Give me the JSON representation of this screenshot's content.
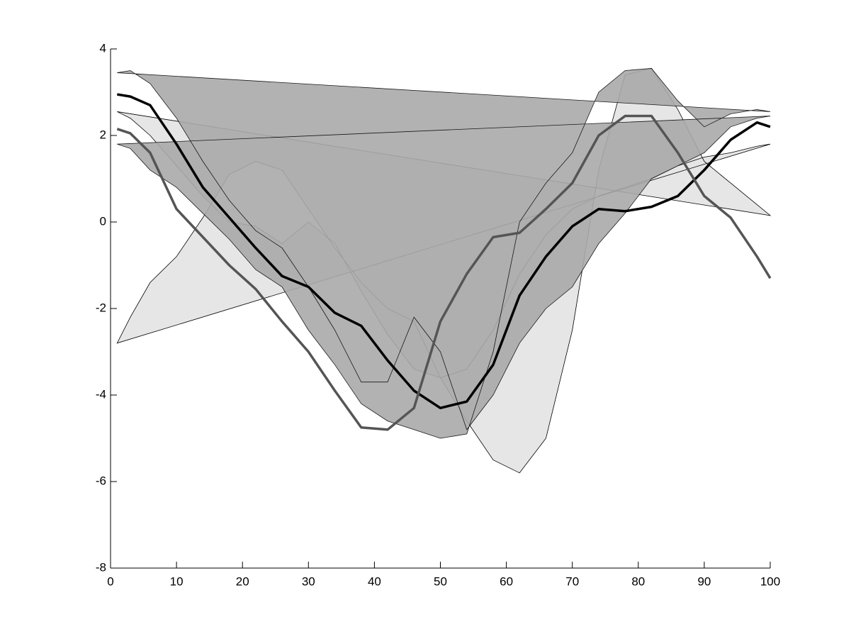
{
  "chart_data": {
    "type": "line",
    "xlim": [
      0,
      100
    ],
    "ylim": [
      -8,
      4
    ],
    "xticks": [
      0,
      10,
      20,
      30,
      40,
      50,
      60,
      70,
      80,
      90,
      100
    ],
    "yticks": [
      -8,
      -6,
      -4,
      -2,
      0,
      2,
      4
    ],
    "x": [
      1,
      3,
      6,
      10,
      14,
      18,
      22,
      26,
      30,
      34,
      38,
      42,
      46,
      50,
      54,
      58,
      62,
      66,
      70,
      74,
      78,
      82,
      86,
      90,
      94,
      98,
      100
    ],
    "areas": [
      {
        "color": "#e6e6e6",
        "values_a": [
          2.55,
          2.4,
          2.0,
          1.3,
          0.6,
          0.0,
          -0.1,
          -0.5,
          0.0,
          -0.5,
          -1.6,
          -2.6,
          -3.4,
          -3.6,
          -3.4,
          -2.5,
          -1.2,
          -0.3,
          0.3,
          0.6,
          0.8,
          1.0,
          1.3,
          1.5,
          1.6,
          1.75,
          1.8
        ],
        "values_b": [
          -2.8,
          -2.2,
          -1.4,
          -0.8,
          0.1,
          1.1,
          1.4,
          1.2,
          0.3,
          -0.6,
          -1.4,
          -2.0,
          -2.3,
          -3.6,
          -4.6,
          -5.5,
          -5.8,
          -5.0,
          -2.5,
          1.2,
          3.4,
          3.55,
          2.6,
          1.4,
          0.9,
          0.4,
          0.15
        ]
      },
      {
        "color": "#aaaaaa",
        "values_a": [
          3.45,
          3.5,
          3.2,
          2.4,
          1.4,
          0.5,
          -0.2,
          -0.6,
          -1.5,
          -2.5,
          -3.7,
          -3.7,
          -2.2,
          -3.0,
          -4.8,
          -4.0,
          -2.8,
          -2.0,
          -1.5,
          -0.5,
          0.2,
          1.0,
          1.3,
          1.6,
          2.2,
          2.4,
          2.45
        ],
        "values_b": [
          1.8,
          1.7,
          1.2,
          0.8,
          0.2,
          -0.4,
          -1.1,
          -1.5,
          -2.5,
          -3.3,
          -4.2,
          -4.6,
          -4.8,
          -5.0,
          -4.9,
          -3.0,
          0.0,
          0.9,
          1.6,
          3.0,
          3.5,
          3.55,
          2.8,
          2.2,
          2.5,
          2.6,
          2.55
        ]
      }
    ],
    "series": [
      {
        "color": "#000000",
        "values": [
          2.95,
          2.9,
          2.7,
          1.8,
          0.8,
          0.1,
          -0.6,
          -1.25,
          -1.5,
          -2.1,
          -2.4,
          -3.2,
          -3.9,
          -4.3,
          -4.15,
          -3.3,
          -1.7,
          -0.8,
          -0.1,
          0.3,
          0.25,
          0.35,
          0.6,
          1.2,
          1.9,
          2.3,
          2.2
        ]
      },
      {
        "color": "#555555",
        "values": [
          2.15,
          2.05,
          1.6,
          0.3,
          -0.35,
          -1.0,
          -1.55,
          -2.3,
          -3.0,
          -3.9,
          -4.75,
          -4.8,
          -4.3,
          -2.3,
          -1.2,
          -0.35,
          -0.25,
          0.3,
          0.9,
          2.0,
          2.45,
          2.45,
          1.6,
          0.6,
          0.1,
          -0.8,
          -1.3
        ]
      }
    ]
  }
}
